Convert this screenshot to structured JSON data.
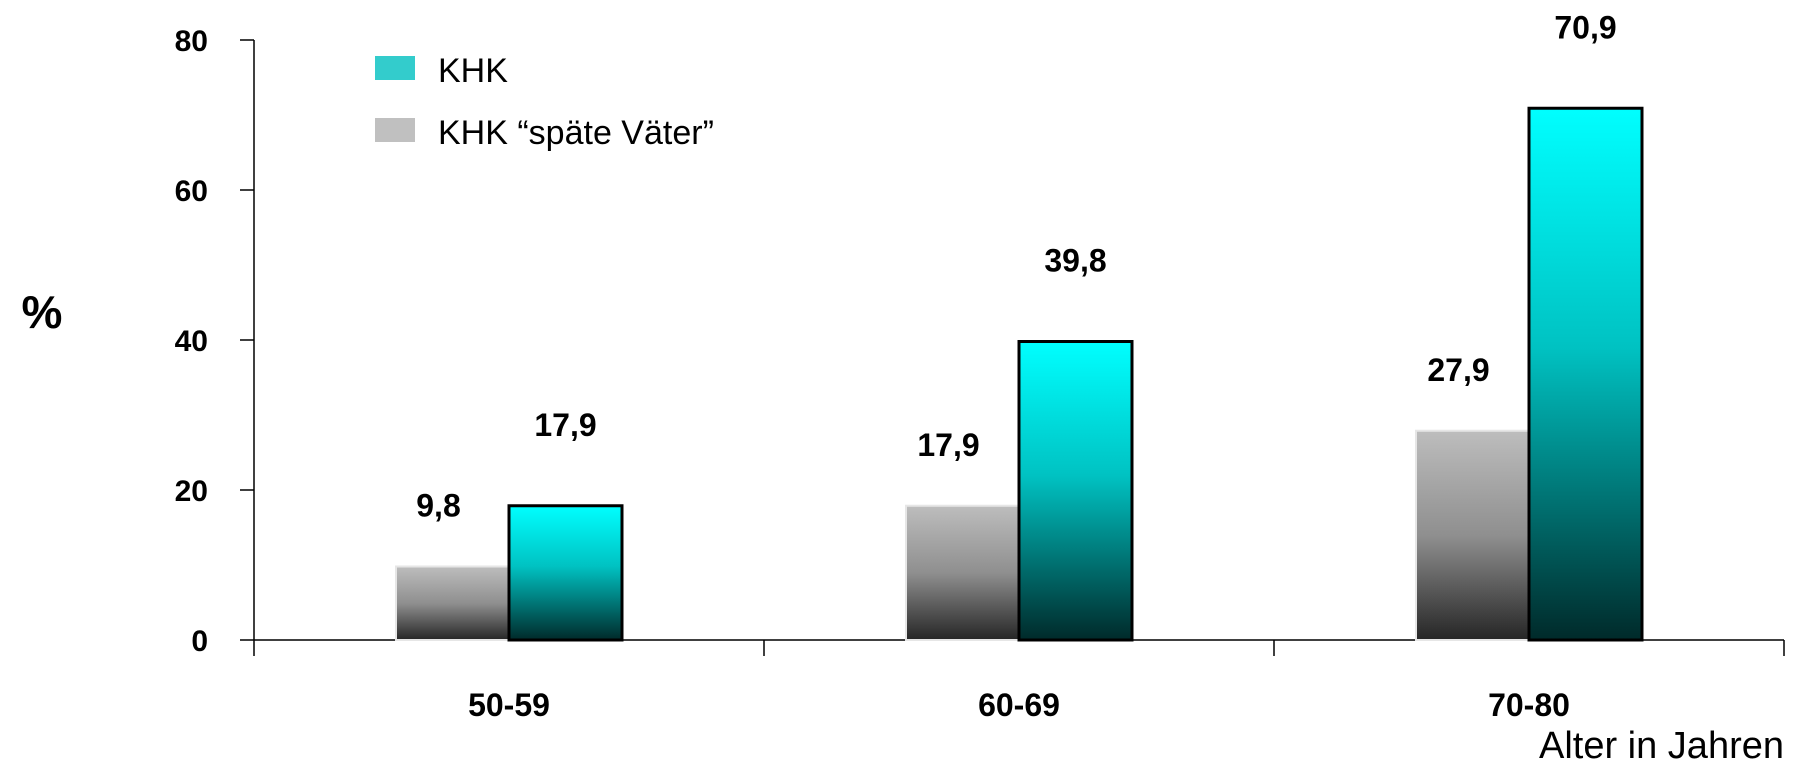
{
  "chart_data": {
    "type": "bar",
    "categories": [
      "50-59",
      "60-69",
      "70-80"
    ],
    "series": [
      {
        "name": "KHK “späte Väter”",
        "values": [
          9.8,
          17.9,
          27.9
        ],
        "labels": [
          "9,8",
          "17,9",
          "27,9"
        ],
        "color": "#b4b4b4"
      },
      {
        "name": "KHK",
        "values": [
          17.9,
          39.8,
          70.9
        ],
        "labels": [
          "17,9",
          "39,8",
          "70,9"
        ],
        "color": "#00ffff"
      }
    ],
    "legend_order": [
      1,
      0
    ],
    "legend_placement": "top-left",
    "ylabel": "%",
    "xlabel": "Alter in Jahren",
    "ylim": [
      0,
      80
    ],
    "yticks": [
      0,
      20,
      40,
      60,
      80
    ],
    "grid": false,
    "legend_swatch_colors": [
      "#33cccc",
      "#c0c0c0"
    ]
  }
}
